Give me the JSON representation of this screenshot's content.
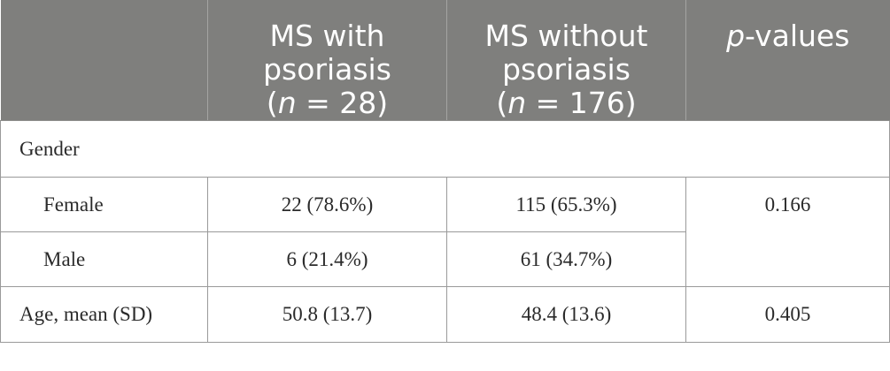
{
  "header": {
    "col1_line1": "MS with",
    "col1_line2": "psoriasis",
    "col1_n_open": "(",
    "col1_n_var": "n",
    "col1_n_rest": " = 28)",
    "col2_line1": "MS without",
    "col2_line2": "psoriasis",
    "col2_n_open": "(",
    "col2_n_var": "n",
    "col2_n_rest": " = 176)",
    "col3_italic": "p",
    "col3_rest": "-values"
  },
  "rows": {
    "gender_label": "Gender",
    "female": {
      "label": "Female",
      "with": "22 (78.6%)",
      "without": "115 (65.3%)",
      "p": "0.166"
    },
    "male": {
      "label": "Male",
      "with": "6 (21.4%)",
      "without": "61 (34.7%)"
    },
    "age": {
      "label": "Age, mean (SD)",
      "with": "50.8 (13.7)",
      "without": "48.4 (13.6)",
      "p": "0.405"
    }
  },
  "colors": {
    "header_bg": "#7f7f7d",
    "header_text": "#ffffff",
    "border": "#9a9a9a"
  }
}
